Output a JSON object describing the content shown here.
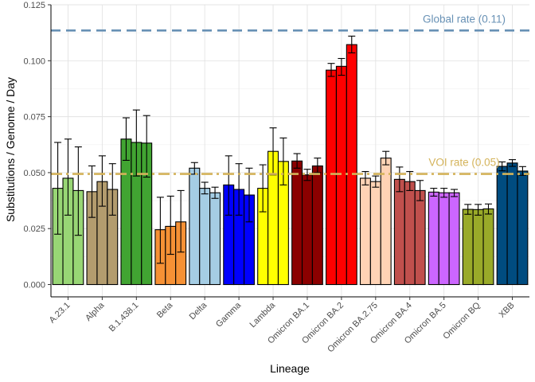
{
  "chart_data": {
    "type": "bar",
    "xlabel": "Lineage",
    "ylabel": "Substitutions / Genome / Day",
    "ylim": [
      -0.0055,
      0.125
    ],
    "yticks": [
      "0.000",
      "0.025",
      "0.050",
      "0.075",
      "0.100",
      "0.125"
    ],
    "ytick_values": [
      0,
      0.025,
      0.05,
      0.075,
      0.1,
      0.125
    ],
    "grid": true,
    "legend": "none",
    "categories": [
      "A.23.1",
      "Alpha",
      "B.1.438.1",
      "Beta",
      "Delta",
      "Gamma",
      "Lambda",
      "Omicron BA.1",
      "Omicron BA.2",
      "Omicron BA.2.75",
      "Omicron BA.4",
      "Omicron BA.5",
      "Omicron BQ",
      "XBB"
    ],
    "colors": [
      "#98D675",
      "#B39C6E",
      "#41A432",
      "#F69135",
      "#A5CDE4",
      "#0000FF",
      "#FFFF00",
      "#8B0000",
      "#FF0000",
      "#FFD3B5",
      "#C0504D",
      "#CC66FF",
      "#99AA29",
      "#004C80"
    ],
    "values": [
      [
        0.043,
        0.0475,
        0.042
      ],
      [
        0.0415,
        0.046,
        0.0425
      ],
      [
        0.065,
        0.0635,
        0.0632
      ],
      [
        0.0245,
        0.026,
        0.028
      ],
      [
        0.052,
        0.043,
        0.041
      ],
      [
        0.0445,
        0.0425,
        0.04
      ],
      [
        0.043,
        0.0595,
        0.055
      ],
      [
        0.0552,
        0.049,
        0.053
      ],
      [
        0.0958,
        0.0975,
        0.1072
      ],
      [
        0.0475,
        0.046,
        0.0565
      ],
      [
        0.047,
        0.046,
        0.042
      ],
      [
        0.0413,
        0.041,
        0.041
      ],
      [
        0.0336,
        0.0335,
        0.0338
      ],
      [
        0.0528,
        0.0543,
        0.0507
      ]
    ],
    "error_low": [
      [
        0.0225,
        0.031,
        0.022
      ],
      [
        0.03,
        0.035,
        0.031
      ],
      [
        0.0555,
        0.0485,
        0.048
      ],
      [
        0.0095,
        0.0135,
        0.0145
      ],
      [
        0.0493,
        0.0405,
        0.0385
      ],
      [
        0.031,
        0.031,
        0.028
      ],
      [
        0.0325,
        0.049,
        0.0445
      ],
      [
        0.052,
        0.0465,
        0.05
      ],
      [
        0.093,
        0.0935,
        0.1035
      ],
      [
        0.0445,
        0.0435,
        0.0535
      ],
      [
        0.0415,
        0.042,
        0.0375
      ],
      [
        0.0395,
        0.039,
        0.0393
      ],
      [
        0.0314,
        0.031,
        0.0315
      ],
      [
        0.0508,
        0.0528,
        0.0488
      ]
    ],
    "error_high": [
      [
        0.0635,
        0.065,
        0.0615
      ],
      [
        0.053,
        0.0575,
        0.054
      ],
      [
        0.0745,
        0.078,
        0.0755
      ],
      [
        0.039,
        0.0395,
        0.042
      ],
      [
        0.0545,
        0.0457,
        0.0435
      ],
      [
        0.0575,
        0.054,
        0.052
      ],
      [
        0.0535,
        0.07,
        0.0655
      ],
      [
        0.0585,
        0.0515,
        0.0565
      ],
      [
        0.0988,
        0.101,
        0.111
      ],
      [
        0.0505,
        0.0485,
        0.0595
      ],
      [
        0.0525,
        0.0505,
        0.0465
      ],
      [
        0.043,
        0.043,
        0.0425
      ],
      [
        0.0358,
        0.0358,
        0.036
      ],
      [
        0.0548,
        0.0558,
        0.0527
      ]
    ],
    "reference_lines": [
      {
        "label": "Global rate (0.11)",
        "y": 0.1135,
        "color": "#6891B5",
        "style": "dashed"
      },
      {
        "label": "VOI rate (0.05)",
        "y": 0.0494,
        "color": "#D4B35A",
        "style": "dashdot"
      }
    ]
  }
}
